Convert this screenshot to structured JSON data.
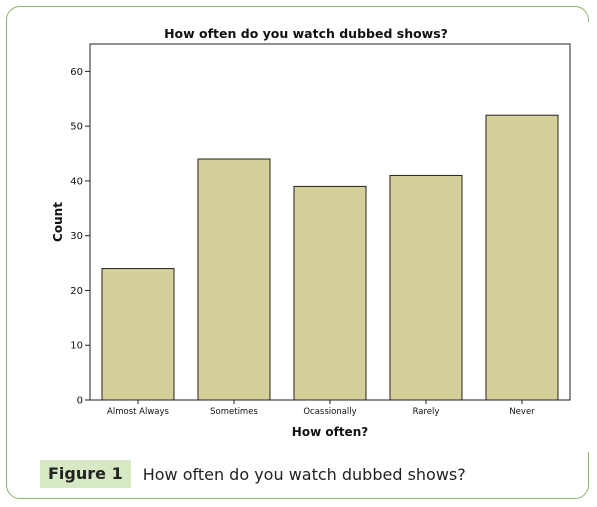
{
  "figure": {
    "label": "Figure 1",
    "caption": "How often do you watch dubbed shows?"
  },
  "chart_data": {
    "type": "bar",
    "title": "How often do you watch dubbed shows?",
    "xlabel": "How often?",
    "ylabel": "Count",
    "categories": [
      "Almost Always",
      "Sometimes",
      "Ocassionally",
      "Rarely",
      "Never"
    ],
    "values": [
      24,
      44,
      39,
      41,
      52
    ],
    "ylim": [
      0,
      65
    ],
    "yticks": [
      0,
      10,
      20,
      30,
      40,
      50,
      60
    ],
    "grid": false,
    "legend": "none",
    "colors": {
      "bar_fill": "#d5d09a",
      "bar_stroke": "#222222",
      "frame": "#8db36a"
    }
  }
}
